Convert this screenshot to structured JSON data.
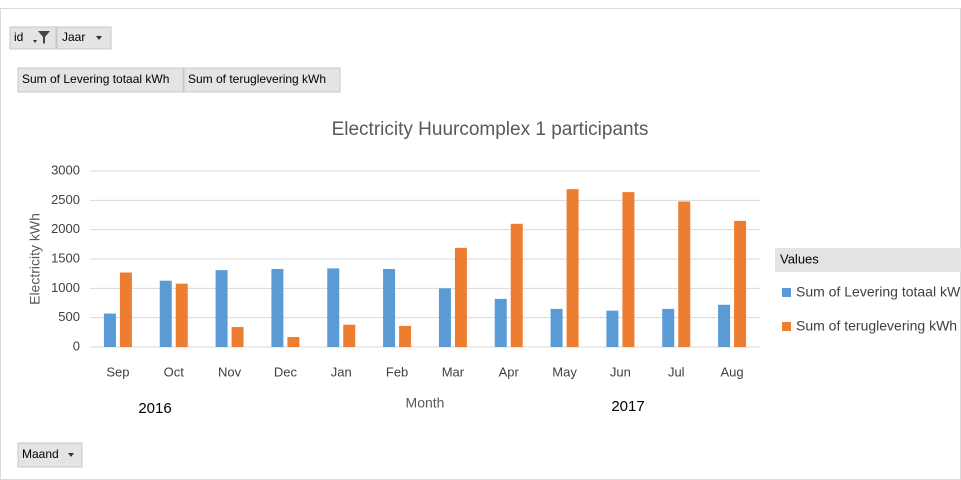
{
  "pivot_fields": {
    "filters": [
      "id",
      "Jaar"
    ],
    "values": [
      "Sum of Levering totaal kWh",
      "Sum of teruglevering kWh"
    ],
    "axis": [
      "Maand"
    ]
  },
  "chart_data": {
    "type": "bar",
    "title": "Electricity  Huurcomplex 1 participants",
    "x_label": "Month",
    "y_label": "Electricity kWh",
    "year_labels": [
      "2016",
      "2017"
    ],
    "legend_title": "Values",
    "legend": "right",
    "categories": [
      "Sep",
      "Oct",
      "Nov",
      "Dec",
      "Jan",
      "Feb",
      "Mar",
      "Apr",
      "May",
      "Jun",
      "Jul",
      "Aug"
    ],
    "series": [
      {
        "name": "Sum of Levering totaal kWh",
        "color": "#5b9bd5",
        "values": [
          570,
          1130,
          1310,
          1330,
          1340,
          1330,
          1000,
          820,
          650,
          620,
          650,
          720
        ]
      },
      {
        "name": "Sum of teruglevering kWh",
        "color": "#ed7d31",
        "values": [
          1270,
          1080,
          340,
          170,
          380,
          360,
          1690,
          2100,
          2690,
          2640,
          2480,
          2150
        ]
      }
    ],
    "ylim": [
      0,
      3000
    ],
    "yticks": [
      0,
      500,
      1000,
      1500,
      2000,
      2500,
      3000
    ],
    "grid": true
  }
}
